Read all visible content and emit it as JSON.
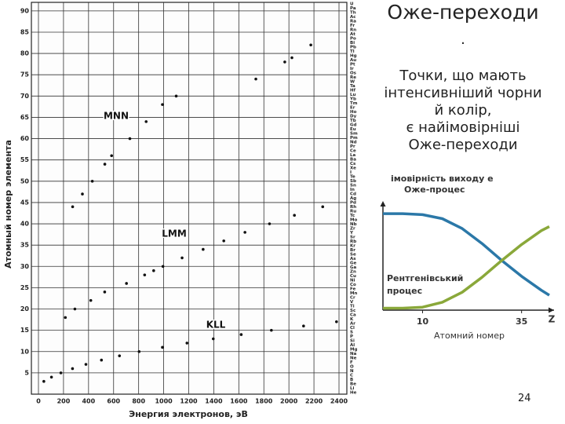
{
  "slide": {
    "title": "Оже-переходи",
    "lines": [
      ".",
      "Точки, що мають",
      "інтенсивніший чорни",
      "й колір,",
      "є найімовірніші",
      "Оже-переходи"
    ],
    "page_number": "24"
  },
  "chart_data": [
    {
      "type": "scatter",
      "xlabel": "Энергия электронов, эВ",
      "ylabel": "Атомный номер элемента",
      "xlim": [
        0,
        2400
      ],
      "xticks": [
        0,
        200,
        400,
        600,
        800,
        1000,
        1200,
        1400,
        1600,
        1800,
        2000,
        2200,
        2400
      ],
      "ylim": [
        0,
        92
      ],
      "yticks": [
        5,
        10,
        15,
        20,
        25,
        30,
        35,
        40,
        45,
        50,
        55,
        60,
        65,
        70,
        75,
        80,
        85,
        90
      ],
      "grid": true,
      "elements": [
        "U",
        "Pa",
        "Th",
        "Ac",
        "Ra",
        "Fr",
        "Rn",
        "At",
        "Po",
        "Bi",
        "Pb",
        "Tl",
        "Hg",
        "Au",
        "Pt",
        "Ir",
        "Os",
        "Re",
        "W",
        "Ta",
        "Hf",
        "Lu",
        "Yb",
        "Tm",
        "Er",
        "Ho",
        "Dy",
        "Tb",
        "Gd",
        "Eu",
        "Sm",
        "Pm",
        "Nd",
        "Pr",
        "Ce",
        "La",
        "Ba",
        "Cs",
        "Xe",
        "I",
        "Te",
        "Sb",
        "Sn",
        "In",
        "Cd",
        "Ag",
        "Pd",
        "Rh",
        "Ru",
        "Tc",
        "Mo",
        "Nb",
        "Zr",
        "Y",
        "Sr",
        "Rb",
        "Kr",
        "Br",
        "Se",
        "As",
        "Ge",
        "Ga",
        "Zn",
        "Cu",
        "Ni",
        "Co",
        "Fe",
        "Mn",
        "Cr",
        "V",
        "Ti",
        "Sc",
        "Ca",
        "K",
        "Ar",
        "Cl",
        "S",
        "P",
        "Si",
        "Al",
        "Mg",
        "Na",
        "Ne",
        "F",
        "O",
        "N",
        "C",
        "B",
        "Be",
        "Li",
        "He"
      ],
      "series": [
        {
          "name": "KLL",
          "color": "#111111",
          "x": [
            43,
            104,
            179,
            272,
            379,
            503,
            647,
            804,
            990,
            1186,
            1396,
            1619,
            1860,
            2117,
            2380
          ],
          "values": [
            3,
            4,
            5,
            6,
            7,
            8,
            9,
            10,
            11,
            12,
            13,
            14,
            15,
            16,
            17
          ]
        },
        {
          "name": "LMM",
          "color": "#111111",
          "x": [
            215,
            291,
            418,
            529,
            703,
            848,
            920,
            994,
            1147,
            1315,
            1480,
            1649,
            1845,
            2044,
            2270
          ],
          "values": [
            18,
            20,
            22,
            24,
            26,
            28,
            29,
            30,
            32,
            34,
            36,
            38,
            40,
            42,
            44
          ]
        },
        {
          "name": "MNN",
          "color": "#111111",
          "x": [
            273,
            351,
            430,
            530,
            584,
            730,
            860,
            990,
            1100,
            1736,
            1967,
            2024,
            2175
          ],
          "values": [
            44,
            47,
            50,
            54,
            56,
            60,
            64,
            68,
            70,
            74,
            78,
            79,
            82
          ]
        }
      ]
    },
    {
      "type": "line",
      "ylabel": "імовірність виходу е",
      "xlabel": "Атомний номер",
      "xaxis_symbol": "Z",
      "xlim": [
        0,
        42
      ],
      "xticks": [
        10,
        35
      ],
      "ylim": [
        0,
        1.05
      ],
      "x": [
        0,
        5,
        10,
        15,
        20,
        25,
        30,
        35,
        40,
        42
      ],
      "series": [
        {
          "name": "Оже-процес",
          "color": "#2b78a8",
          "values": [
            0.97,
            0.97,
            0.96,
            0.92,
            0.82,
            0.67,
            0.5,
            0.34,
            0.2,
            0.15
          ]
        },
        {
          "name": "Рентгенівський процес",
          "color": "#8aa83a",
          "values": [
            0.02,
            0.02,
            0.03,
            0.08,
            0.18,
            0.33,
            0.5,
            0.66,
            0.8,
            0.84
          ]
        }
      ]
    }
  ]
}
